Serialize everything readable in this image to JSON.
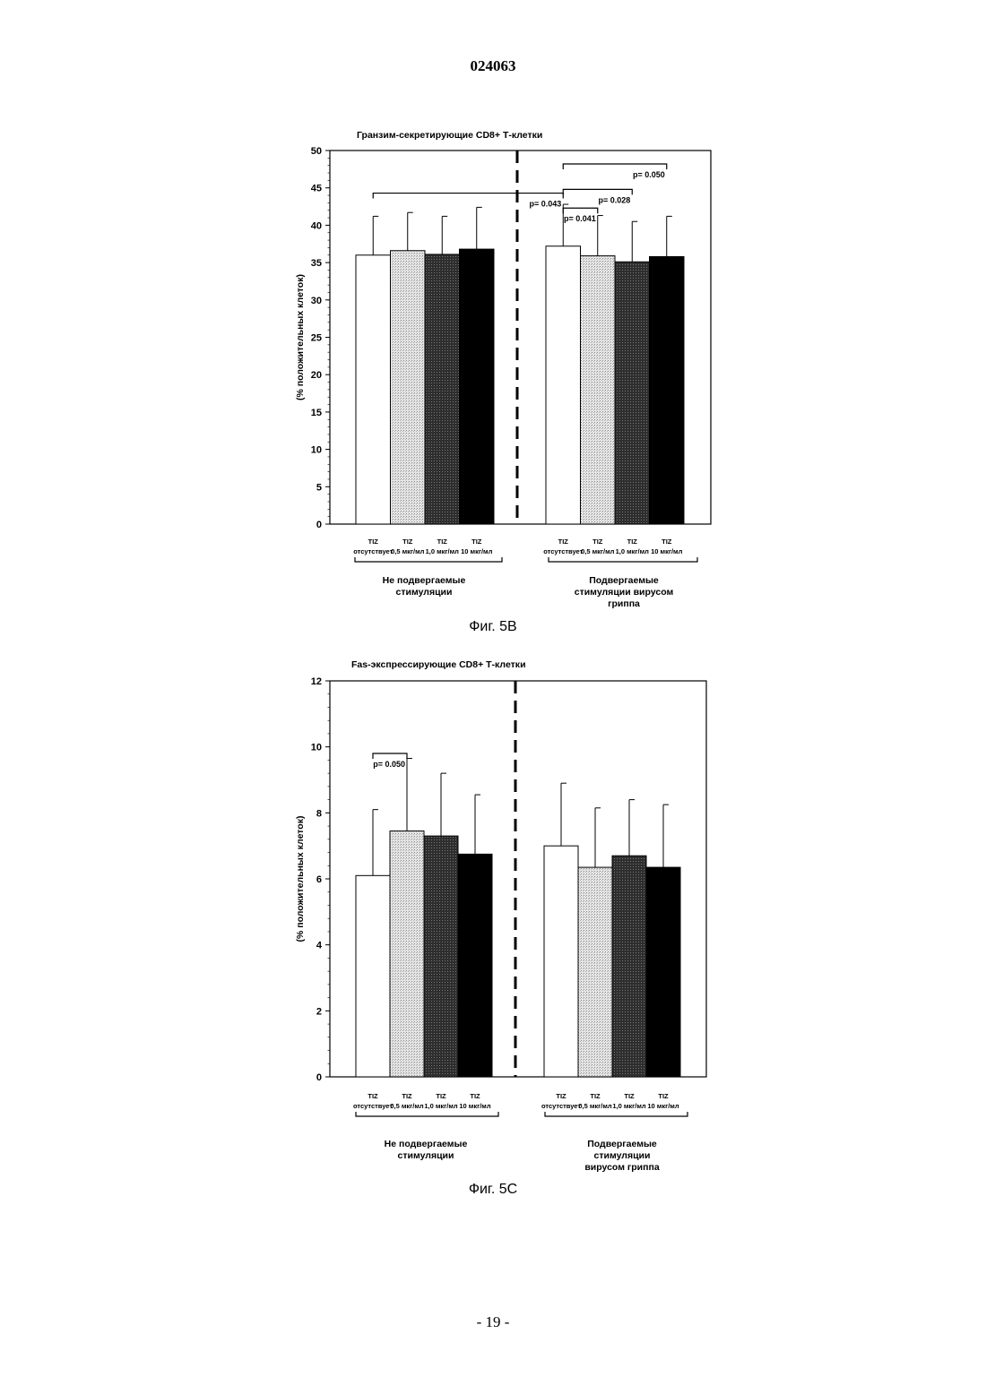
{
  "document": {
    "patent_number": "024063",
    "page_footer": "- 19 -"
  },
  "chart_data": [
    {
      "type": "bar",
      "title": "Гранзим-секретирующие CD8+ Т-клетки",
      "ylabel": "(% положительных клеток)",
      "ylim": [
        0,
        50
      ],
      "yticks": [
        0,
        5,
        10,
        15,
        20,
        25,
        30,
        35,
        40,
        45,
        50
      ],
      "caption": "Фиг. 5B",
      "categories": [
        {
          "line1": "TIZ",
          "line2": "отсутствует"
        },
        {
          "line1": "TIZ",
          "line2": "0,5 мкг/мл"
        },
        {
          "line1": "TIZ",
          "line2": "1,0 мкг/мл"
        },
        {
          "line1": "TIZ",
          "line2": "10 мкг/мл"
        }
      ],
      "groups": [
        {
          "label": [
            "Не подвергаемые",
            "стимуляции"
          ],
          "values": [
            36,
            36.6,
            36.1,
            36.8
          ],
          "errors": [
            5.2,
            5.1,
            5.1,
            5.6
          ]
        },
        {
          "label": [
            "Подвергаемые",
            "стимуляции вирусом",
            "гриппа"
          ],
          "values": [
            37.2,
            35.9,
            35.1,
            35.8
          ],
          "errors": [
            5.6,
            5.4,
            5.4,
            5.4
          ]
        }
      ],
      "fills": [
        "#ffffff",
        "#d4d4d4",
        "#3c3c3c",
        "#000000"
      ],
      "annotations": [
        {
          "text": "p= 0.043",
          "from": [
            0,
            0
          ],
          "to": [
            1,
            0
          ],
          "y": 44.3
        },
        {
          "text": "p= 0.041",
          "from": [
            1,
            0
          ],
          "to": [
            1,
            1
          ],
          "y": 42.3
        },
        {
          "text": "p= 0.028",
          "from": [
            1,
            0
          ],
          "to": [
            1,
            2
          ],
          "y": 44.8
        },
        {
          "text": "p= 0.050",
          "from": [
            1,
            0
          ],
          "to": [
            1,
            3
          ],
          "y": 48.2
        }
      ]
    },
    {
      "type": "bar",
      "title": "Fas-экспрессирующие CD8+ Т-клетки",
      "ylabel": "(% положительных клеток)",
      "ylim": [
        0,
        12
      ],
      "yticks": [
        0,
        2,
        4,
        6,
        8,
        10,
        12
      ],
      "caption": "Фиг. 5C",
      "categories": [
        {
          "line1": "TIZ",
          "line2": "отсутствует"
        },
        {
          "line1": "TIZ",
          "line2": "0,5 мкг/мл"
        },
        {
          "line1": "TIZ",
          "line2": "1,0 мкг/мл"
        },
        {
          "line1": "TIZ",
          "line2": "10 мкг/мл"
        }
      ],
      "groups": [
        {
          "label": [
            "Не подвергаемые",
            "стимуляции"
          ],
          "values": [
            6.1,
            7.45,
            7.3,
            6.75
          ],
          "errors": [
            2.0,
            2.2,
            1.9,
            1.8
          ]
        },
        {
          "label": [
            "Подвергаемые",
            "стимуляции",
            "вирусом гриппа"
          ],
          "values": [
            7.0,
            6.35,
            6.7,
            6.35
          ],
          "errors": [
            1.9,
            1.8,
            1.7,
            1.9
          ]
        }
      ],
      "fills": [
        "#ffffff",
        "#d4d4d4",
        "#3c3c3c",
        "#000000"
      ],
      "annotations": [
        {
          "text": "p= 0.050",
          "from": [
            0,
            0
          ],
          "to": [
            0,
            1
          ],
          "y": 9.8
        }
      ]
    }
  ]
}
